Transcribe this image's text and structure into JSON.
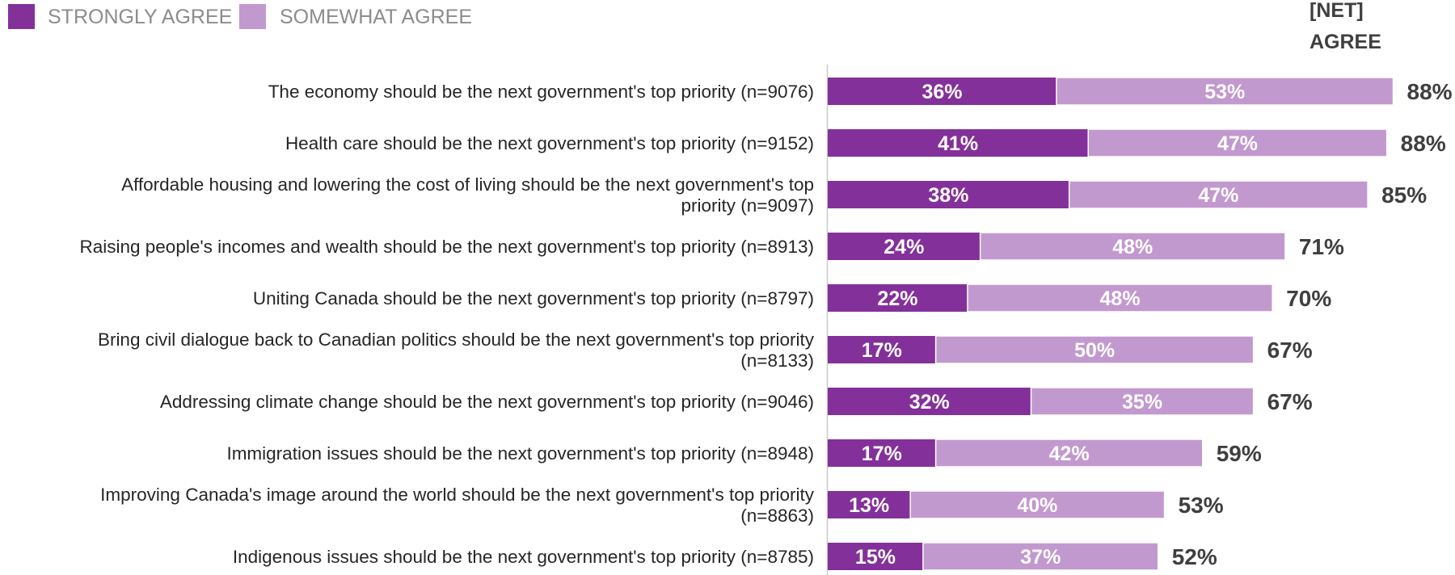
{
  "legend": {
    "strongly_agree": "STRONGLY AGREE",
    "somewhat_agree": "SOMEWHAT AGREE"
  },
  "net_header": [
    "[NET]",
    "AGREE"
  ],
  "colors": {
    "strongly_agree": "#84309a",
    "somewhat_agree": "#c299cf",
    "axis": "#c9c9c9"
  },
  "chart_data": {
    "type": "bar",
    "orientation": "horizontal",
    "stacked": true,
    "categories": [
      [
        "The economy should be the next government's top priority (n=9076)"
      ],
      [
        "Health care should be the next government's top priority (n=9152)"
      ],
      [
        "Affordable housing and lowering the cost of living should be the next government's top",
        "priority (n=9097)"
      ],
      [
        "Raising people's incomes and wealth should be the next government's top priority (n=8913)"
      ],
      [
        "Uniting Canada should be the next government's top priority (n=8797)"
      ],
      [
        "Bring civil dialogue back to Canadian politics should be the next government's top priority",
        "(n=8133)"
      ],
      [
        "Addressing climate change should be the next government's top priority (n=9046)"
      ],
      [
        "Immigration issues should be the next government's top priority (n=8948)"
      ],
      [
        "Improving Canada's image around the world should be the next government's top priority",
        "(n=8863)"
      ],
      [
        "Indigenous issues should be the next government's top priority (n=8785)"
      ]
    ],
    "series": [
      {
        "name": "STRONGLY AGREE",
        "values": [
          36,
          41,
          38,
          24,
          22,
          17,
          32,
          17,
          13,
          15
        ]
      },
      {
        "name": "SOMEWHAT AGREE",
        "values": [
          53,
          47,
          47,
          48,
          48,
          50,
          35,
          42,
          40,
          37
        ]
      }
    ],
    "net_agree": [
      88,
      88,
      85,
      71,
      70,
      67,
      67,
      59,
      53,
      52
    ],
    "value_suffix": "%",
    "xlim": [
      0,
      100
    ],
    "legend_position": "top-left"
  }
}
